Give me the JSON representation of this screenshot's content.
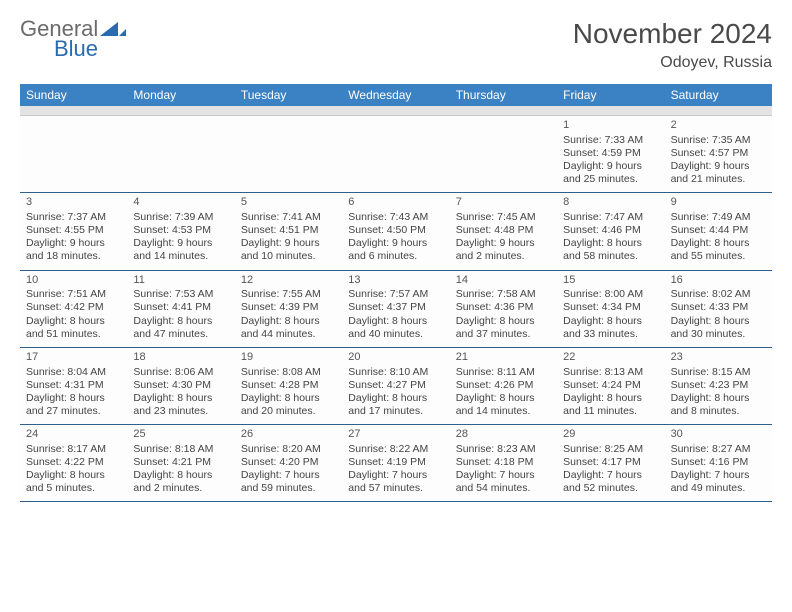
{
  "brand": {
    "word1": "General",
    "word2": "Blue",
    "color_gray": "#6b6b6b",
    "color_blue": "#2a6bb0",
    "tri_color": "#2a6bb0"
  },
  "title": {
    "month": "November 2024",
    "location": "Odoyev, Russia"
  },
  "colors": {
    "header_bg": "#3b82c4",
    "header_fg": "#ffffff",
    "rule": "#2e5f8f",
    "subbar": "#e3e3e3"
  },
  "dayNames": [
    "Sunday",
    "Monday",
    "Tuesday",
    "Wednesday",
    "Thursday",
    "Friday",
    "Saturday"
  ],
  "weeks": [
    [
      null,
      null,
      null,
      null,
      null,
      {
        "n": "1",
        "sr": "7:33 AM",
        "ss": "4:59 PM",
        "dl": "9 hours and 25 minutes."
      },
      {
        "n": "2",
        "sr": "7:35 AM",
        "ss": "4:57 PM",
        "dl": "9 hours and 21 minutes."
      }
    ],
    [
      {
        "n": "3",
        "sr": "7:37 AM",
        "ss": "4:55 PM",
        "dl": "9 hours and 18 minutes."
      },
      {
        "n": "4",
        "sr": "7:39 AM",
        "ss": "4:53 PM",
        "dl": "9 hours and 14 minutes."
      },
      {
        "n": "5",
        "sr": "7:41 AM",
        "ss": "4:51 PM",
        "dl": "9 hours and 10 minutes."
      },
      {
        "n": "6",
        "sr": "7:43 AM",
        "ss": "4:50 PM",
        "dl": "9 hours and 6 minutes."
      },
      {
        "n": "7",
        "sr": "7:45 AM",
        "ss": "4:48 PM",
        "dl": "9 hours and 2 minutes."
      },
      {
        "n": "8",
        "sr": "7:47 AM",
        "ss": "4:46 PM",
        "dl": "8 hours and 58 minutes."
      },
      {
        "n": "9",
        "sr": "7:49 AM",
        "ss": "4:44 PM",
        "dl": "8 hours and 55 minutes."
      }
    ],
    [
      {
        "n": "10",
        "sr": "7:51 AM",
        "ss": "4:42 PM",
        "dl": "8 hours and 51 minutes."
      },
      {
        "n": "11",
        "sr": "7:53 AM",
        "ss": "4:41 PM",
        "dl": "8 hours and 47 minutes."
      },
      {
        "n": "12",
        "sr": "7:55 AM",
        "ss": "4:39 PM",
        "dl": "8 hours and 44 minutes."
      },
      {
        "n": "13",
        "sr": "7:57 AM",
        "ss": "4:37 PM",
        "dl": "8 hours and 40 minutes."
      },
      {
        "n": "14",
        "sr": "7:58 AM",
        "ss": "4:36 PM",
        "dl": "8 hours and 37 minutes."
      },
      {
        "n": "15",
        "sr": "8:00 AM",
        "ss": "4:34 PM",
        "dl": "8 hours and 33 minutes."
      },
      {
        "n": "16",
        "sr": "8:02 AM",
        "ss": "4:33 PM",
        "dl": "8 hours and 30 minutes."
      }
    ],
    [
      {
        "n": "17",
        "sr": "8:04 AM",
        "ss": "4:31 PM",
        "dl": "8 hours and 27 minutes."
      },
      {
        "n": "18",
        "sr": "8:06 AM",
        "ss": "4:30 PM",
        "dl": "8 hours and 23 minutes."
      },
      {
        "n": "19",
        "sr": "8:08 AM",
        "ss": "4:28 PM",
        "dl": "8 hours and 20 minutes."
      },
      {
        "n": "20",
        "sr": "8:10 AM",
        "ss": "4:27 PM",
        "dl": "8 hours and 17 minutes."
      },
      {
        "n": "21",
        "sr": "8:11 AM",
        "ss": "4:26 PM",
        "dl": "8 hours and 14 minutes."
      },
      {
        "n": "22",
        "sr": "8:13 AM",
        "ss": "4:24 PM",
        "dl": "8 hours and 11 minutes."
      },
      {
        "n": "23",
        "sr": "8:15 AM",
        "ss": "4:23 PM",
        "dl": "8 hours and 8 minutes."
      }
    ],
    [
      {
        "n": "24",
        "sr": "8:17 AM",
        "ss": "4:22 PM",
        "dl": "8 hours and 5 minutes."
      },
      {
        "n": "25",
        "sr": "8:18 AM",
        "ss": "4:21 PM",
        "dl": "8 hours and 2 minutes."
      },
      {
        "n": "26",
        "sr": "8:20 AM",
        "ss": "4:20 PM",
        "dl": "7 hours and 59 minutes."
      },
      {
        "n": "27",
        "sr": "8:22 AM",
        "ss": "4:19 PM",
        "dl": "7 hours and 57 minutes."
      },
      {
        "n": "28",
        "sr": "8:23 AM",
        "ss": "4:18 PM",
        "dl": "7 hours and 54 minutes."
      },
      {
        "n": "29",
        "sr": "8:25 AM",
        "ss": "4:17 PM",
        "dl": "7 hours and 52 minutes."
      },
      {
        "n": "30",
        "sr": "8:27 AM",
        "ss": "4:16 PM",
        "dl": "7 hours and 49 minutes."
      }
    ]
  ],
  "labels": {
    "sunrise": "Sunrise: ",
    "sunset": "Sunset: ",
    "daylight": "Daylight: "
  }
}
